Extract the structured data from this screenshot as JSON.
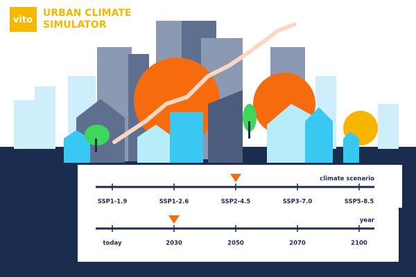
{
  "header": {
    "logo": "vito",
    "title_lines": [
      "URBAN CLIMATE",
      "SIMULATOR"
    ]
  },
  "sliders": [
    {
      "label": "climate scenario",
      "options": [
        "SSP1-1.9",
        "SSP1-2.6",
        "SSP2-4.5",
        "SSP3-7.0",
        "SSP5-8.5"
      ],
      "selected": 2
    },
    {
      "label": "year",
      "options": [
        "today",
        "2030",
        "2050",
        "2070",
        "2100"
      ],
      "selected": 1
    }
  ]
}
